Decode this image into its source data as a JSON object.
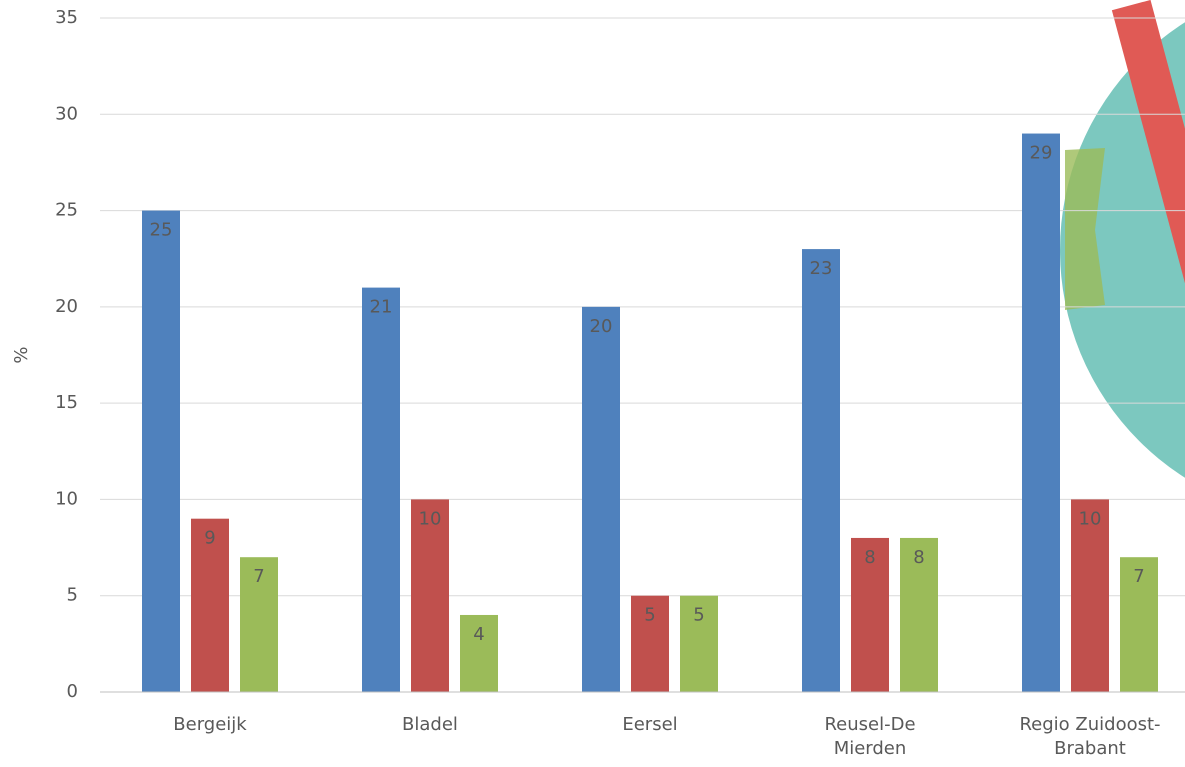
{
  "chart_data": {
    "type": "bar",
    "y_label": "%",
    "categories": [
      "Bergeijk",
      "Bladel",
      "Eersel",
      "Reusel-De Mierden",
      "Regio Zuidoost-Brabant"
    ],
    "series": [
      {
        "color": "#4f81bd",
        "values": [
          25,
          21,
          20,
          23,
          29
        ]
      },
      {
        "color": "#c0504d",
        "values": [
          9,
          10,
          5,
          8,
          10
        ]
      },
      {
        "color": "#9bbb59",
        "values": [
          7,
          4,
          5,
          8,
          7
        ]
      }
    ],
    "ylim": [
      0,
      35
    ],
    "yticks": [
      0,
      5,
      10,
      15,
      20,
      25,
      30,
      35
    ],
    "grid": true
  }
}
